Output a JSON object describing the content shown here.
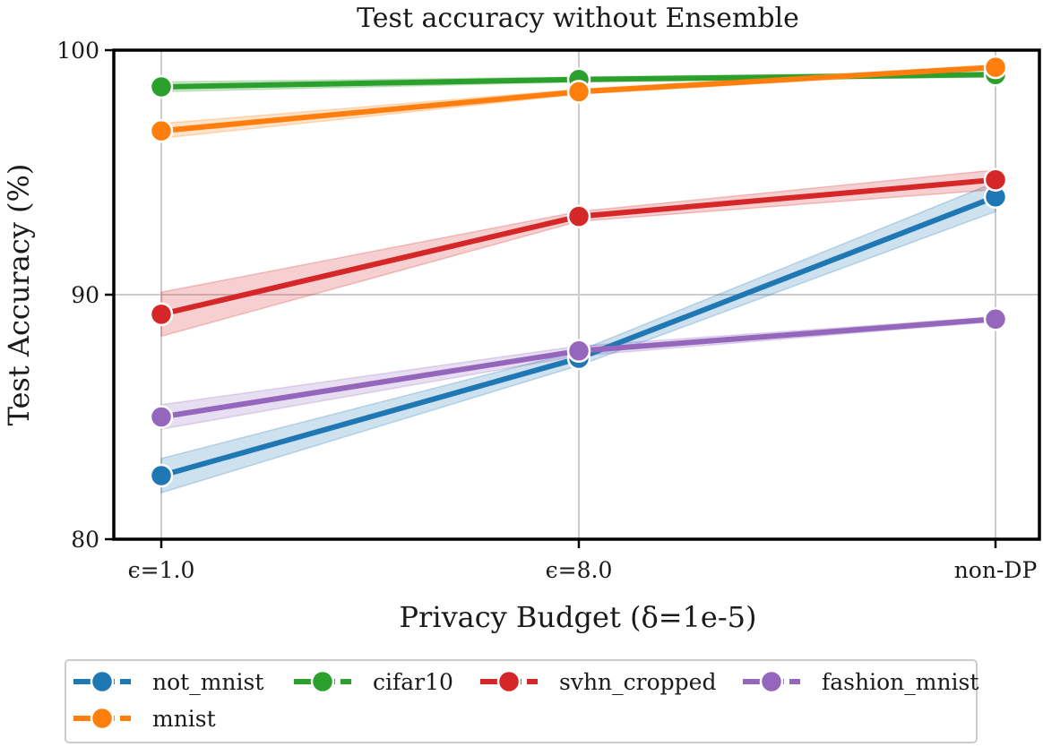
{
  "chart_data": {
    "type": "line",
    "title": "Test accuracy without Ensemble",
    "xlabel": "Privacy Budget (δ=1e-5)",
    "ylabel": "Test Accuracy (%)",
    "categories": [
      "ϵ=1.0",
      "ϵ=8.0",
      "non-DP"
    ],
    "ylim": [
      80,
      100
    ],
    "yticks": [
      80,
      90,
      100
    ],
    "grid": true,
    "legend_position": "bottom",
    "series": [
      {
        "name": "not_mnist",
        "color": "#1f77b4",
        "values": [
          82.6,
          87.4,
          94.0
        ],
        "lower": [
          81.9,
          87.1,
          93.4
        ],
        "upper": [
          83.3,
          87.7,
          94.6
        ]
      },
      {
        "name": "cifar10",
        "color": "#2ca02c",
        "values": [
          98.5,
          98.8,
          99.0
        ],
        "lower": [
          98.3,
          98.7,
          98.9
        ],
        "upper": [
          98.7,
          98.9,
          99.1
        ]
      },
      {
        "name": "svhn_cropped",
        "color": "#d62728",
        "values": [
          89.2,
          93.2,
          94.7
        ],
        "lower": [
          88.3,
          93.0,
          94.3
        ],
        "upper": [
          90.1,
          93.4,
          95.1
        ]
      },
      {
        "name": "fashion_mnist",
        "color": "#9467bd",
        "values": [
          85.0,
          87.7,
          89.0
        ],
        "lower": [
          84.5,
          87.5,
          88.9
        ],
        "upper": [
          85.5,
          87.9,
          89.1
        ]
      },
      {
        "name": "mnist",
        "color": "#ff7f0e",
        "values": [
          96.7,
          98.3,
          99.3
        ],
        "lower": [
          96.4,
          98.2,
          99.2
        ],
        "upper": [
          97.0,
          98.4,
          99.4
        ]
      }
    ]
  }
}
